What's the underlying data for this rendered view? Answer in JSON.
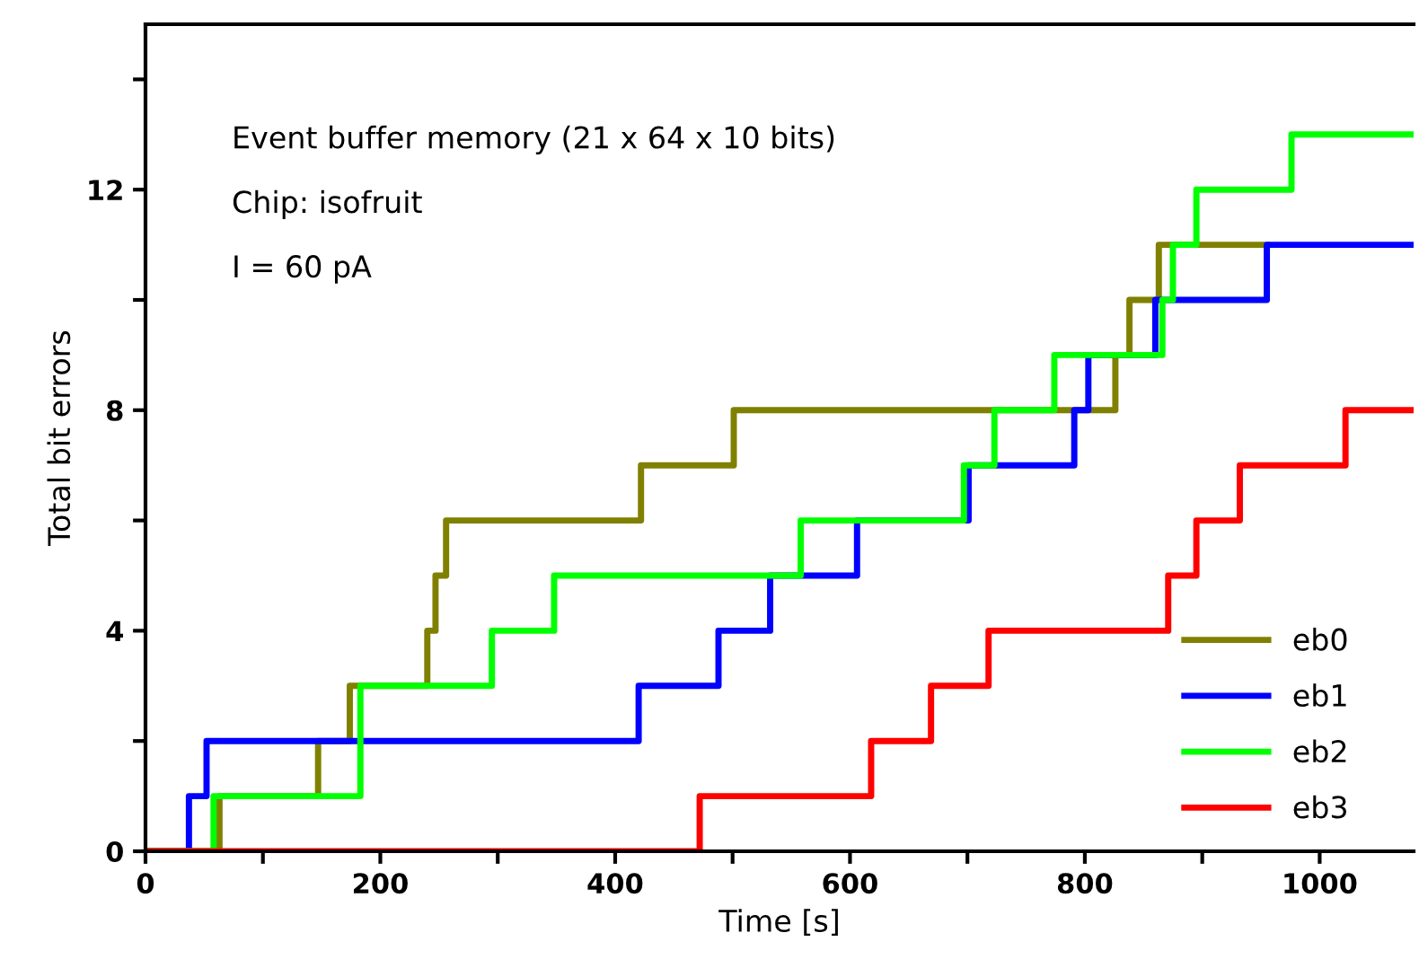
{
  "chart_data": {
    "type": "step",
    "xlabel": "Time [s]",
    "ylabel": "Total bit errors",
    "annotations": [
      "Event buffer memory (21 x 64 x 10 bits)",
      "Chip: isofruit",
      "I = 60 pA"
    ],
    "series": [
      {
        "name": "eb0",
        "color": "#808000",
        "x": [
          0,
          63,
          147,
          174,
          240,
          247,
          256,
          422,
          501,
          826,
          838,
          863,
          955
        ],
        "values": [
          0,
          1,
          2,
          3,
          4,
          5,
          6,
          7,
          8,
          9,
          10,
          11,
          11
        ]
      },
      {
        "name": "eb1",
        "color": "#0000ff",
        "x": [
          0,
          37,
          52,
          420,
          488,
          532,
          606,
          701,
          791,
          803,
          860,
          955,
          1080
        ],
        "values": [
          0,
          1,
          2,
          3,
          4,
          5,
          6,
          7,
          8,
          9,
          10,
          11,
          11
        ]
      },
      {
        "name": "eb2",
        "color": "#00ff00",
        "x": [
          0,
          58,
          183,
          295,
          348,
          558,
          697,
          723,
          774,
          866,
          875,
          895,
          976,
          1080
        ],
        "values": [
          0,
          1,
          3,
          4,
          5,
          6,
          7,
          8,
          9,
          10,
          11,
          12,
          13,
          13
        ]
      },
      {
        "name": "eb3",
        "color": "#ff0000",
        "x": [
          0,
          472,
          618,
          669,
          718,
          871,
          895,
          932,
          1022,
          1080
        ],
        "values": [
          0,
          1,
          2,
          3,
          4,
          5,
          6,
          7,
          8,
          8
        ]
      }
    ],
    "xlim": [
      0,
      1080
    ],
    "ylim": [
      0,
      15
    ],
    "xticks": [
      0,
      {
        "value": 100,
        "label": null
      },
      200,
      {
        "value": 300,
        "label": null
      },
      400,
      {
        "value": 500,
        "label": null
      },
      600,
      {
        "value": 700,
        "label": null
      },
      800,
      {
        "value": 900,
        "label": null
      },
      1000
    ],
    "yticks": [
      0,
      {
        "value": 2,
        "label": null
      },
      4,
      {
        "value": 6,
        "label": null
      },
      8,
      {
        "value": 10,
        "label": null
      },
      12,
      {
        "value": 14,
        "label": null
      }
    ],
    "legend": "bottom right",
    "grid": false
  }
}
